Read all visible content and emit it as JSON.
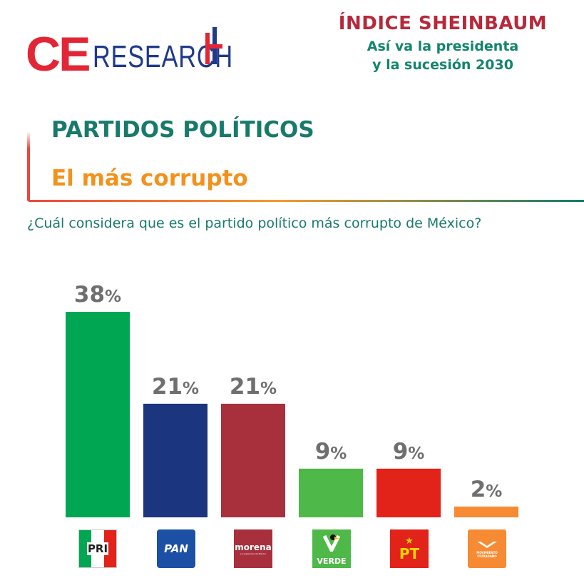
{
  "brand": {
    "prefix": "CE",
    "name": "RESEARCH"
  },
  "header": {
    "title": "ÍNDICE SHEINBAUM",
    "subtitle_line1": "Así va la presidenta",
    "subtitle_line2": "y la sucesión 2030"
  },
  "section": "PARTIDOS POLÍTICOS",
  "subsection": "El más corrupto",
  "question": "¿Cuál considera que es el partido político más corrupto de México?",
  "colors": {
    "PRI": "#00a651",
    "PAN": "#1b357e",
    "Morena": "#a8303c",
    "Verde": "#4eb848",
    "PT": "#e2231a",
    "MC": "#f68b33"
  },
  "logos": {
    "PRI": "PRI",
    "PAN": "PAN",
    "Morena": "morena",
    "Morena_tagline": "La esperanza de México",
    "Verde": "VERDE",
    "PT": "PT",
    "MC": "MOVIMIENTO CIUDADANO"
  },
  "chart_data": {
    "type": "bar",
    "categories": [
      "PRI",
      "PAN",
      "Morena",
      "Verde",
      "PT",
      "MC"
    ],
    "values": [
      38,
      21,
      21,
      9,
      9,
      2
    ],
    "value_labels": [
      "38%",
      "21%",
      "21%",
      "9%",
      "9%",
      "2%"
    ],
    "ylim": [
      0,
      38
    ],
    "grid": false,
    "legend": "none",
    "xlabel": "",
    "ylabel": ""
  }
}
